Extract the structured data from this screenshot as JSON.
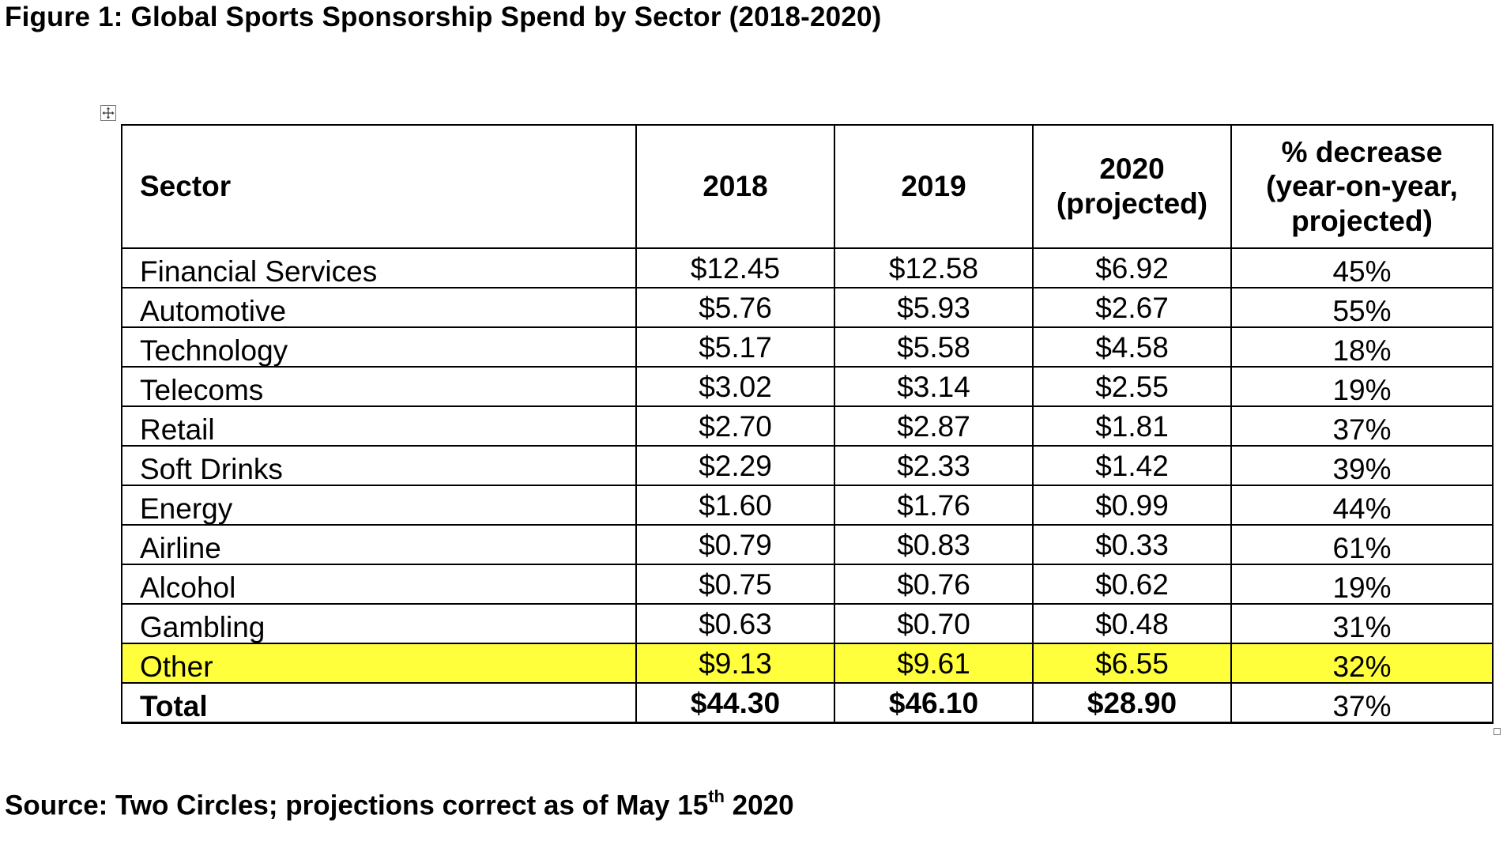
{
  "figure": {
    "title": "Figure 1: Global Sports Sponsorship Spend by Sector (2018-2020)"
  },
  "table": {
    "headers": {
      "sector": "Sector",
      "y2018": "2018",
      "y2019": "2019",
      "y2020_line1": "2020",
      "y2020_line2": "(projected)",
      "pct_line1": "% decrease",
      "pct_line2": "(year-on-year,",
      "pct_line3": "projected)"
    },
    "rows": [
      {
        "sector": "Financial Services",
        "y2018": "$12.45",
        "y2019": "$12.58",
        "y2020": "$6.92",
        "pct": "45%"
      },
      {
        "sector": "Automotive",
        "y2018": "$5.76",
        "y2019": "$5.93",
        "y2020": "$2.67",
        "pct": "55%"
      },
      {
        "sector": "Technology",
        "y2018": "$5.17",
        "y2019": "$5.58",
        "y2020": "$4.58",
        "pct": "18%"
      },
      {
        "sector": "Telecoms",
        "y2018": "$3.02",
        "y2019": "$3.14",
        "y2020": "$2.55",
        "pct": "19%"
      },
      {
        "sector": "Retail",
        "y2018": "$2.70",
        "y2019": "$2.87",
        "y2020": "$1.81",
        "pct": "37%"
      },
      {
        "sector": "Soft Drinks",
        "y2018": "$2.29",
        "y2019": "$2.33",
        "y2020": "$1.42",
        "pct": "39%"
      },
      {
        "sector": "Energy",
        "y2018": "$1.60",
        "y2019": "$1.76",
        "y2020": "$0.99",
        "pct": "44%"
      },
      {
        "sector": "Airline",
        "y2018": "$0.79",
        "y2019": "$0.83",
        "y2020": "$0.33",
        "pct": "61%"
      },
      {
        "sector": "Alcohol",
        "y2018": "$0.75",
        "y2019": "$0.76",
        "y2020": "$0.62",
        "pct": "19%"
      },
      {
        "sector": "Gambling",
        "y2018": "$0.63",
        "y2019": "$0.70",
        "y2020": "$0.48",
        "pct": "31%"
      },
      {
        "sector": "Other",
        "y2018": "$9.13",
        "y2019": "$9.61",
        "y2020": "$6.55",
        "pct": "32%"
      }
    ],
    "total": {
      "sector": "Total",
      "y2018": "$44.30",
      "y2019": "$46.10",
      "y2020": "$28.90",
      "pct": "37%"
    }
  },
  "highlight_color": "#ffff3b",
  "icons": {
    "table_move": "move-arrows-icon",
    "table_resize": "resize-handle-icon"
  },
  "source": {
    "prefix": "Source: Two Circles; projections correct as of May 15",
    "superscript": "th",
    "suffix": " 2020"
  }
}
